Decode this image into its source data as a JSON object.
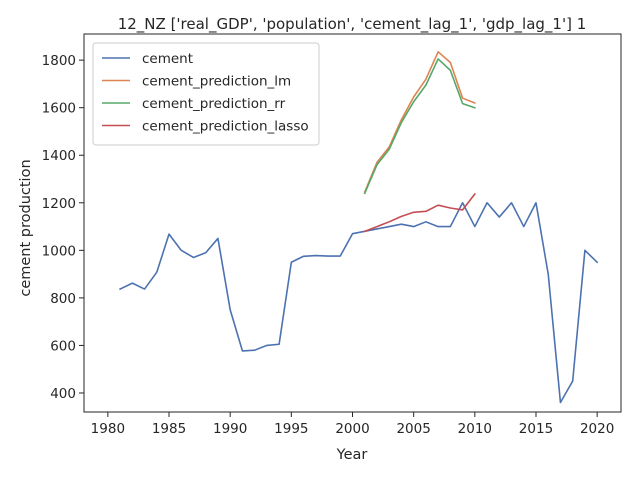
{
  "chart_data": {
    "type": "line",
    "title": "12_NZ ['real_GDP', 'population', 'cement_lag_1', 'gdp_lag_1'] 1",
    "xlabel": "Year",
    "ylabel": "cement production",
    "xlim": [
      1978.05,
      2021.95
    ],
    "ylim": [
      320,
      1910
    ],
    "x_ticks": [
      1980,
      1985,
      1990,
      1995,
      2000,
      2005,
      2010,
      2015,
      2020
    ],
    "y_ticks": [
      400,
      600,
      800,
      1000,
      1200,
      1400,
      1600,
      1800
    ],
    "grid": false,
    "legend_position": "top-left",
    "series": [
      {
        "name": "cement",
        "color": "#4c72b0",
        "x": [
          1981,
          1982,
          1983,
          1984,
          1985,
          1986,
          1987,
          1988,
          1989,
          1990,
          1991,
          1992,
          1993,
          1994,
          1995,
          1996,
          1997,
          1998,
          1999,
          2000,
          2001,
          2002,
          2003,
          2004,
          2005,
          2006,
          2007,
          2008,
          2009,
          2010,
          2011,
          2012,
          2013,
          2014,
          2015,
          2016,
          2017,
          2018,
          2019,
          2020
        ],
        "values": [
          837,
          862,
          837,
          908,
          1068,
          1000,
          970,
          990,
          1050,
          750,
          577,
          580,
          600,
          605,
          950,
          975,
          978,
          976,
          976,
          1070,
          1080,
          1090,
          1100,
          1110,
          1100,
          1120,
          1100,
          1100,
          1200,
          1100,
          1200,
          1140,
          1200,
          1100,
          1200,
          900,
          360,
          450,
          1000,
          950
        ]
      },
      {
        "name": "cement_prediction_lm",
        "color": "#dd8452",
        "x": [
          2001,
          2002,
          2003,
          2004,
          2005,
          2006,
          2007,
          2008,
          2009,
          2010
        ],
        "values": [
          1245,
          1370,
          1435,
          1550,
          1645,
          1720,
          1835,
          1790,
          1640,
          1620
        ]
      },
      {
        "name": "cement_prediction_rr",
        "color": "#55a868",
        "x": [
          2001,
          2002,
          2003,
          2004,
          2005,
          2006,
          2007,
          2008,
          2009,
          2010
        ],
        "values": [
          1240,
          1360,
          1425,
          1538,
          1625,
          1695,
          1805,
          1757,
          1617,
          1600
        ]
      },
      {
        "name": "cement_prediction_lasso",
        "color": "#c44e52",
        "x": [
          2001,
          2002,
          2003,
          2004,
          2005,
          2006,
          2007,
          2008,
          2009,
          2010
        ],
        "values": [
          1080,
          1100,
          1120,
          1143,
          1160,
          1164,
          1190,
          1178,
          1170,
          1237
        ]
      }
    ]
  }
}
